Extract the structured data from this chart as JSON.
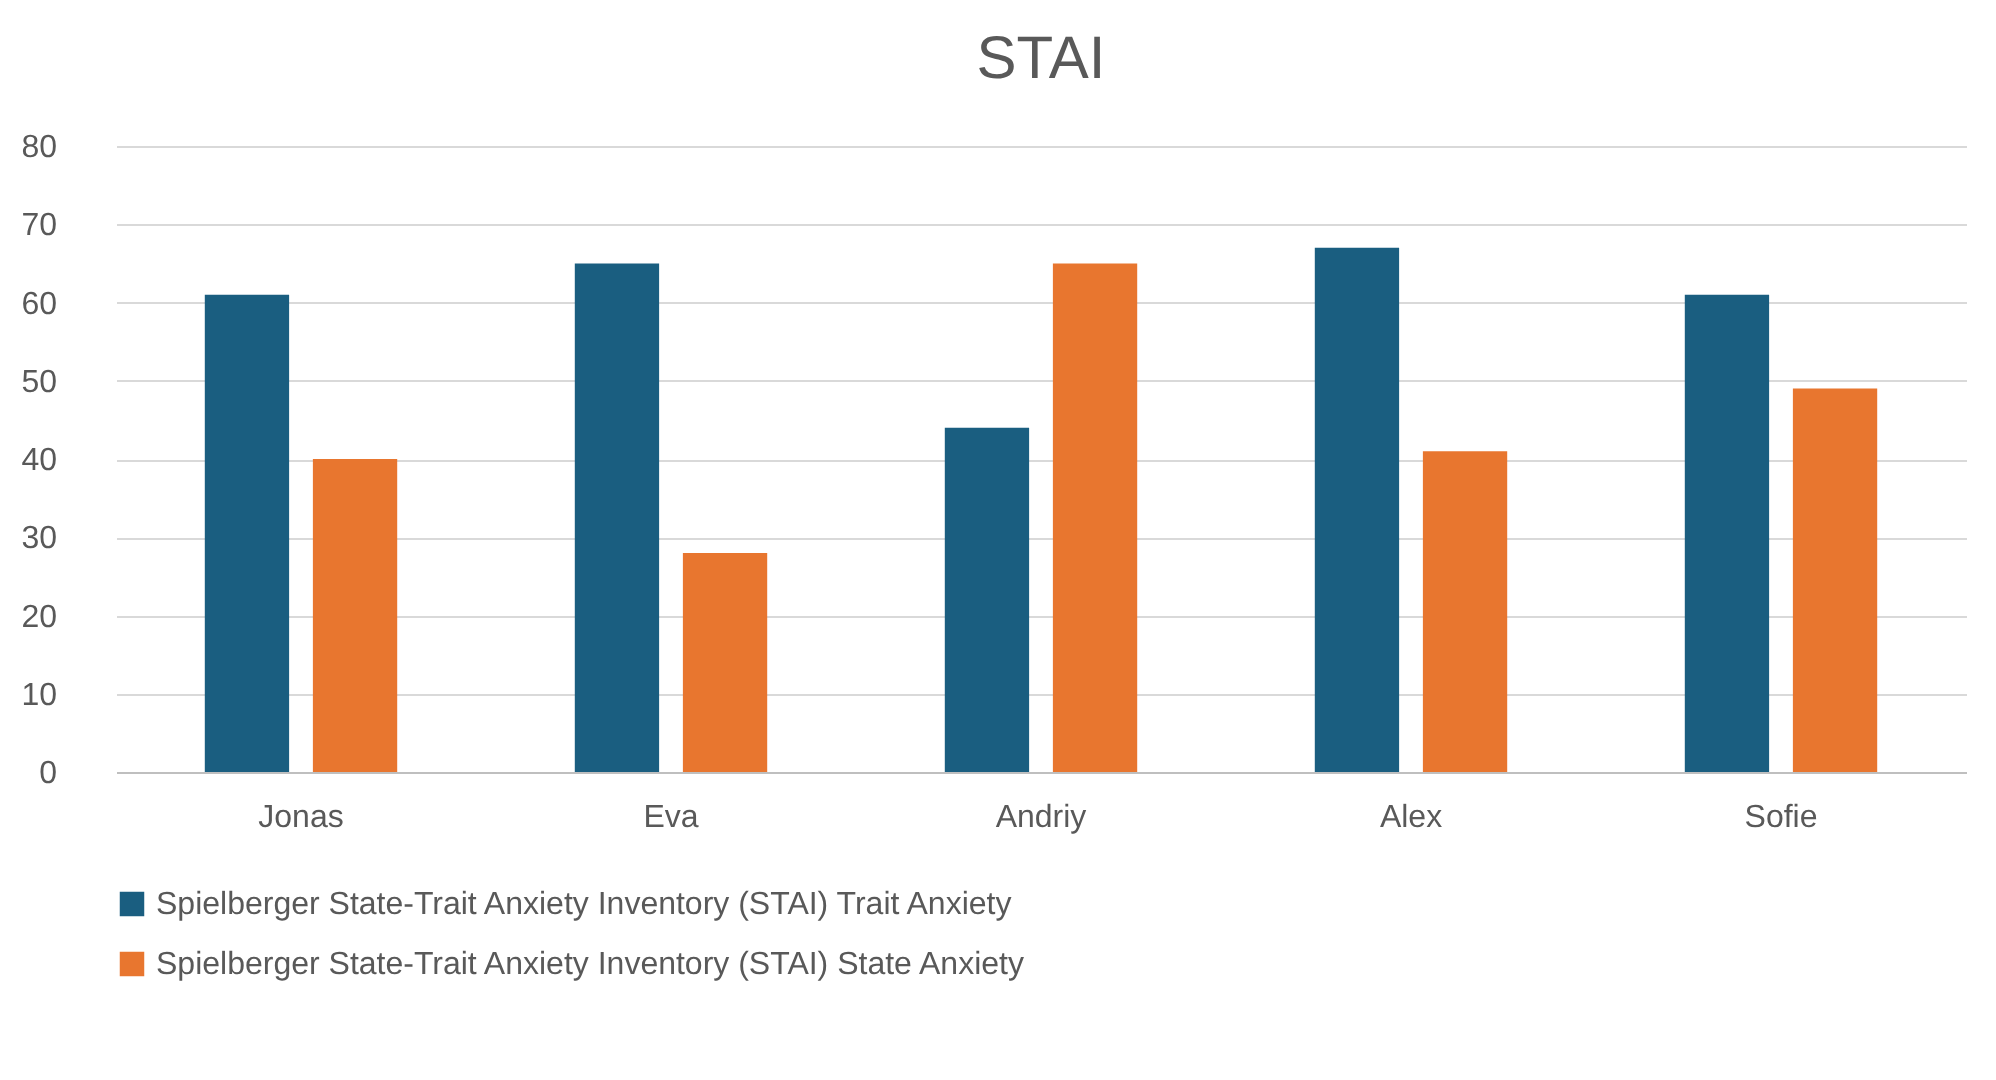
{
  "chart_data": {
    "type": "bar",
    "title": "STAI",
    "categories": [
      "Jonas",
      "Eva",
      "Andriy",
      "Alex",
      "Sofie"
    ],
    "series": [
      {
        "name": "Spielberger State-Trait Anxiety Inventory (STAI) Trait Anxiety",
        "color": "#1a5e80",
        "values": [
          61,
          65,
          44,
          67,
          61
        ]
      },
      {
        "name": "Spielberger State-Trait Anxiety Inventory (STAI) State Anxiety",
        "color": "#e8762f",
        "values": [
          40,
          28,
          65,
          41,
          49
        ]
      }
    ],
    "ylim": [
      0,
      80
    ],
    "yticks": [
      0,
      10,
      20,
      30,
      40,
      50,
      60,
      70,
      80
    ],
    "grid": "y",
    "legend": "bottom"
  }
}
